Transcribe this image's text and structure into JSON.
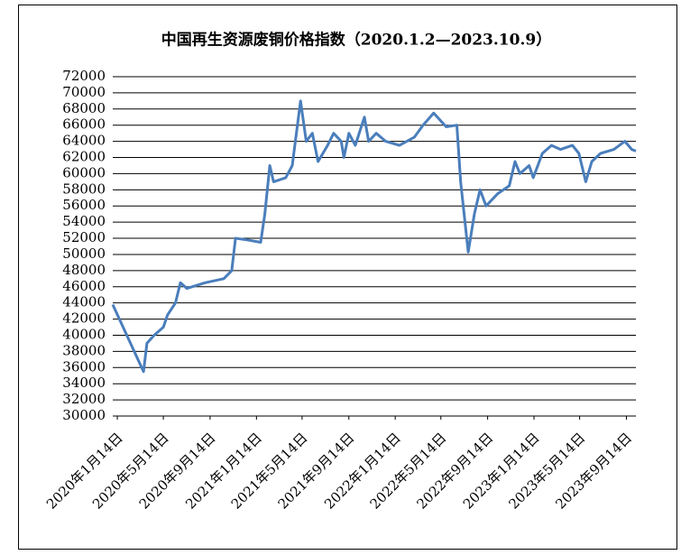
{
  "chart_data": {
    "type": "line",
    "title": "中国再生资源废铜价格指数（2020.1.2—2023.10.9）",
    "color": "#4a7ebb",
    "xlim": [
      "2020-01-02",
      "2023-10-09"
    ],
    "xticks": [
      {
        "value": "2020-01-14",
        "label": "2020年1月14日"
      },
      {
        "value": "2020-05-14",
        "label": "2020年5月14日"
      },
      {
        "value": "2020-09-14",
        "label": "2020年9月14日"
      },
      {
        "value": "2021-01-14",
        "label": "2021年1月14日"
      },
      {
        "value": "2021-05-14",
        "label": "2021年5月14日"
      },
      {
        "value": "2021-09-14",
        "label": "2021年9月14日"
      },
      {
        "value": "2022-01-14",
        "label": "2022年1月14日"
      },
      {
        "value": "2022-05-14",
        "label": "2022年5月14日"
      },
      {
        "value": "2022-09-14",
        "label": "2022年9月14日"
      },
      {
        "value": "2023-01-14",
        "label": "2023年1月14日"
      },
      {
        "value": "2023-05-14",
        "label": "2023年5月14日"
      },
      {
        "value": "2023-09-14",
        "label": "2023年9月14日"
      }
    ],
    "ylim": [
      30000,
      72000
    ],
    "yticks": [
      30000,
      32000,
      34000,
      36000,
      38000,
      40000,
      42000,
      44000,
      46000,
      48000,
      50000,
      52000,
      54000,
      56000,
      58000,
      60000,
      62000,
      64000,
      66000,
      68000,
      70000,
      72000
    ],
    "grid": true,
    "x": [
      "2020-01-02",
      "2020-03-23",
      "2020-04-01",
      "2020-04-20",
      "2020-05-14",
      "2020-05-25",
      "2020-06-15",
      "2020-06-28",
      "2020-07-15",
      "2020-09-01",
      "2020-10-20",
      "2020-11-10",
      "2020-11-20",
      "2020-12-20",
      "2021-01-25",
      "2021-02-05",
      "2021-02-18",
      "2021-02-28",
      "2021-04-01",
      "2021-04-18",
      "2021-05-10",
      "2021-05-25",
      "2021-06-10",
      "2021-06-25",
      "2021-07-20",
      "2021-08-05",
      "2021-08-25",
      "2021-09-01",
      "2021-09-14",
      "2021-10-01",
      "2021-10-25",
      "2021-11-05",
      "2021-11-25",
      "2021-12-20",
      "2022-01-25",
      "2022-03-05",
      "2022-03-28",
      "2022-04-25",
      "2022-05-28",
      "2022-06-25",
      "2022-07-05",
      "2022-07-25",
      "2022-08-10",
      "2022-08-25",
      "2022-09-10",
      "2022-10-10",
      "2022-11-10",
      "2022-11-25",
      "2022-12-08",
      "2023-01-01",
      "2023-01-12",
      "2023-02-05",
      "2023-03-01",
      "2023-03-25",
      "2023-04-25",
      "2023-05-12",
      "2023-05-30",
      "2023-06-15",
      "2023-07-08",
      "2023-08-12",
      "2023-09-10",
      "2023-09-28",
      "2023-10-09"
    ],
    "values": [
      43800,
      35500,
      39000,
      40000,
      41000,
      42500,
      44000,
      46500,
      45800,
      46500,
      47000,
      48000,
      52000,
      51800,
      51500,
      55000,
      61000,
      59000,
      59500,
      61000,
      69000,
      64000,
      65000,
      61500,
      63500,
      65000,
      64000,
      62000,
      65000,
      63500,
      67000,
      64000,
      65000,
      64000,
      63500,
      64500,
      66000,
      67500,
      65800,
      66000,
      59000,
      50300,
      55000,
      58000,
      56000,
      57500,
      58500,
      61500,
      60000,
      61000,
      59500,
      62500,
      63500,
      63000,
      63500,
      62500,
      59000,
      61500,
      62500,
      63000,
      64000,
      63000,
      62800
    ]
  }
}
